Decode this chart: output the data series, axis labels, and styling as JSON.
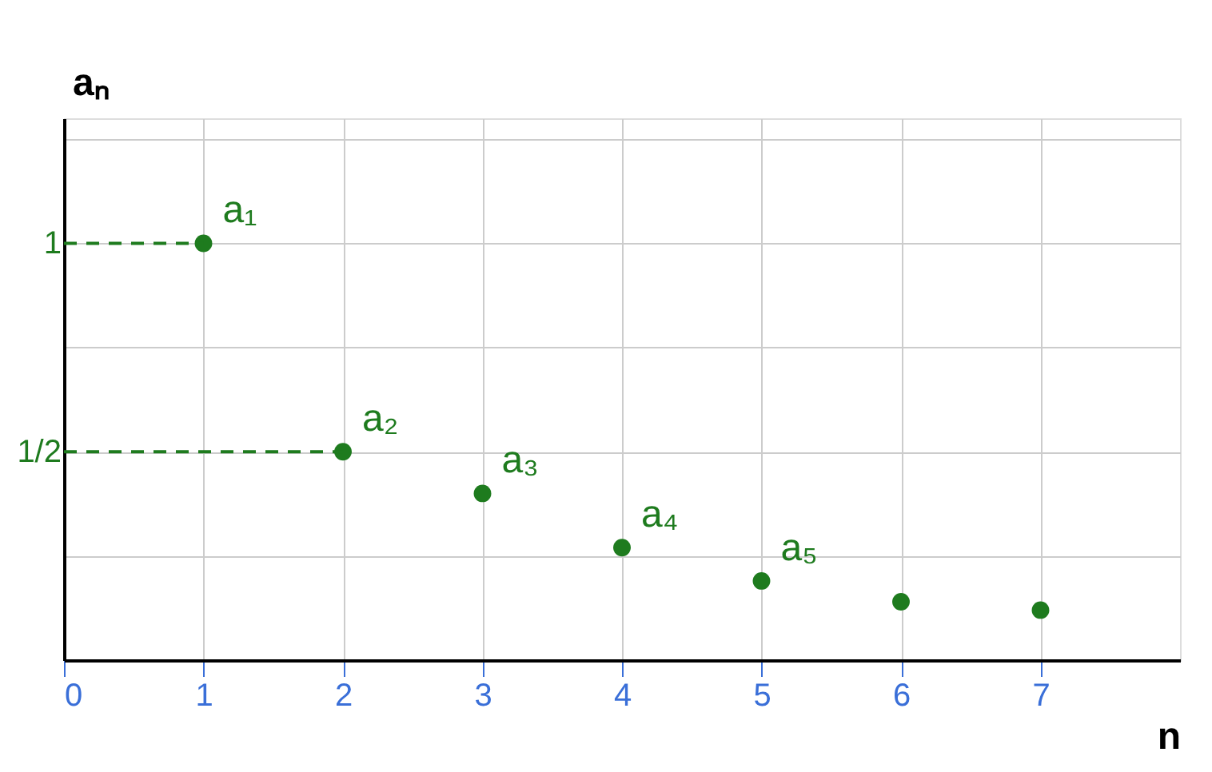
{
  "chart_data": {
    "type": "scatter",
    "xlabel": "n",
    "ylabel": "aₙ",
    "x": [
      1,
      2,
      3,
      4,
      5,
      6,
      7
    ],
    "series": [
      {
        "color": "#1e7b1e",
        "values": [
          1,
          0.5,
          0.4,
          0.27,
          0.19,
          0.14,
          0.12
        ]
      }
    ],
    "marker": "circle",
    "xlim": [
      0,
      8
    ],
    "ylim": [
      0,
      1.3
    ],
    "xticks": [
      0,
      1,
      2,
      3,
      4,
      5,
      6,
      7
    ],
    "yticks": [
      {
        "value": 0.25,
        "label": null
      },
      {
        "value": 0.5,
        "label": "1/2"
      },
      {
        "value": 0.75,
        "label": null
      },
      {
        "value": 1,
        "label": "1"
      },
      {
        "value": 1.25,
        "label": null
      }
    ],
    "grid": true,
    "ref_lines": [
      {
        "axis": "y",
        "value": 1,
        "color": "#1e7b1e",
        "line_style": "dashed"
      },
      {
        "axis": "y",
        "value": 0.5,
        "color": "#1e7b1e",
        "line_style": "dashed"
      }
    ],
    "annotations": [
      {
        "text": "a₁",
        "x": 1,
        "y": 1
      },
      {
        "text": "a₂",
        "x": 2,
        "y": 0.5
      },
      {
        "text": "a₃",
        "x": 3,
        "y": 0.4
      },
      {
        "text": "a₄",
        "x": 4,
        "y": 0.27
      },
      {
        "text": "a₅",
        "x": 5,
        "y": 0.19
      }
    ]
  }
}
